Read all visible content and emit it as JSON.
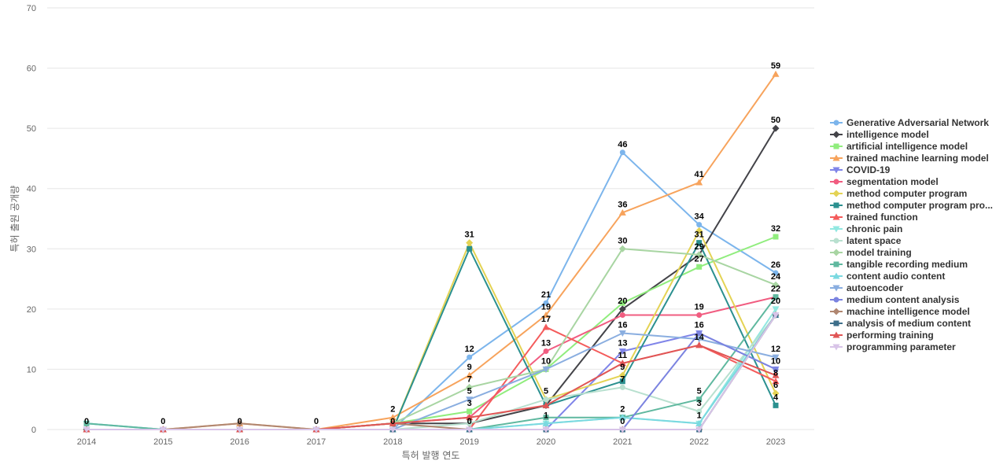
{
  "chart_data": {
    "type": "line",
    "title": "",
    "xlabel": "특허 발행 연도",
    "ylabel": "특허 출원 공개량",
    "x": [
      "2014",
      "2015",
      "2016",
      "2017",
      "2018",
      "2019",
      "2020",
      "2021",
      "2022",
      "2023"
    ],
    "ylim": [
      0,
      70
    ],
    "yticks": [
      0,
      10,
      20,
      30,
      40,
      50,
      60,
      70
    ],
    "grid": true,
    "legend_position": "right",
    "series": [
      {
        "name": "Generative Adversarial Network",
        "color": "#7cb5ec",
        "marker": "circle",
        "values": [
          1,
          0,
          0,
          0,
          0,
          12,
          21,
          46,
          34,
          26
        ]
      },
      {
        "name": "intelligence model",
        "color": "#434348",
        "marker": "diamond",
        "values": [
          0,
          0,
          0,
          0,
          1,
          1,
          4,
          20,
          29,
          50
        ]
      },
      {
        "name": "artificial intelligence model",
        "color": "#90ed7d",
        "marker": "square",
        "values": [
          0,
          0,
          0,
          0,
          1,
          3,
          10,
          21,
          27,
          32
        ]
      },
      {
        "name": "trained machine learning model",
        "color": "#f7a35c",
        "marker": "triangle",
        "values": [
          0,
          0,
          1,
          0,
          2,
          9,
          19,
          36,
          41,
          59
        ]
      },
      {
        "name": "COVID-19",
        "color": "#8085e9",
        "marker": "triangle-down",
        "values": [
          0,
          0,
          0,
          0,
          0,
          0,
          0,
          13,
          16,
          10
        ]
      },
      {
        "name": "segmentation model",
        "color": "#f15c80",
        "marker": "circle",
        "values": [
          0,
          0,
          0,
          0,
          1,
          2,
          13,
          19,
          19,
          22
        ]
      },
      {
        "name": "method computer program",
        "color": "#e4d354",
        "marker": "diamond",
        "values": [
          0,
          0,
          0,
          0,
          0,
          31,
          5,
          9,
          33,
          6
        ]
      },
      {
        "name": "method computer program pro...",
        "color": "#2b908f",
        "marker": "square",
        "values": [
          0,
          0,
          0,
          0,
          0,
          30,
          4,
          8,
          31,
          4
        ]
      },
      {
        "name": "trained function",
        "color": "#f45b5b",
        "marker": "triangle",
        "values": [
          0,
          0,
          0,
          0,
          0,
          0,
          17,
          11,
          14,
          8
        ]
      },
      {
        "name": "chronic pain",
        "color": "#91e8e1",
        "marker": "triangle-down",
        "values": [
          1,
          0,
          0,
          0,
          0,
          0,
          1,
          2,
          1,
          20
        ]
      },
      {
        "name": "latent space",
        "color": "#b8e0cf",
        "marker": "circle",
        "values": [
          0,
          0,
          0,
          0,
          0,
          1,
          5,
          7,
          3,
          19
        ]
      },
      {
        "name": "model training",
        "color": "#a8d5a2",
        "marker": "diamond",
        "values": [
          0,
          0,
          0,
          0,
          1,
          7,
          10,
          30,
          29,
          24
        ]
      },
      {
        "name": "tangible recording medium",
        "color": "#5fb89f",
        "marker": "square",
        "values": [
          1,
          0,
          0,
          0,
          0,
          0,
          2,
          2,
          5,
          22
        ]
      },
      {
        "name": "content audio content",
        "color": "#7ad9e0",
        "marker": "triangle",
        "values": [
          0,
          0,
          0,
          0,
          0,
          0,
          1,
          2,
          1,
          19
        ]
      },
      {
        "name": "autoencoder",
        "color": "#8aaee0",
        "marker": "triangle-down",
        "values": [
          0,
          0,
          0,
          0,
          0,
          5,
          10,
          16,
          15,
          12
        ]
      },
      {
        "name": "medium content analysis",
        "color": "#7b83e0",
        "marker": "circle",
        "values": [
          0,
          0,
          0,
          0,
          0,
          0,
          0,
          0,
          16,
          10
        ]
      },
      {
        "name": "machine intelligence model",
        "color": "#b08670",
        "marker": "diamond",
        "values": [
          0,
          0,
          1,
          0,
          1,
          0,
          0,
          0,
          0,
          19
        ]
      },
      {
        "name": "analysis of medium content",
        "color": "#3d6e8a",
        "marker": "square",
        "values": [
          0,
          0,
          0,
          0,
          0,
          0,
          0,
          0,
          0,
          19
        ]
      },
      {
        "name": "performing training",
        "color": "#e05555",
        "marker": "triangle",
        "values": [
          0,
          0,
          0,
          0,
          1,
          2,
          4,
          11,
          14,
          9
        ]
      },
      {
        "name": "programming parameter",
        "color": "#d8c4e8",
        "marker": "triangle-down",
        "values": [
          0,
          0,
          0,
          0,
          0,
          0,
          0,
          0,
          0,
          19
        ]
      }
    ],
    "data_labels": [
      {
        "xi": 0,
        "text": "0"
      },
      {
        "xi": 1,
        "text": "0"
      },
      {
        "xi": 2,
        "text": "0"
      },
      {
        "xi": 3,
        "text": "0"
      },
      {
        "xi": 4,
        "text": "2"
      },
      {
        "xi": 4,
        "text": "0"
      },
      {
        "xi": 5,
        "text": "31"
      },
      {
        "xi": 5,
        "text": "12"
      },
      {
        "xi": 5,
        "text": "9"
      },
      {
        "xi": 5,
        "text": "7"
      },
      {
        "xi": 5,
        "text": "5"
      },
      {
        "xi": 5,
        "text": "3"
      },
      {
        "xi": 5,
        "text": "0"
      },
      {
        "xi": 6,
        "text": "21"
      },
      {
        "xi": 6,
        "text": "19"
      },
      {
        "xi": 6,
        "text": "17"
      },
      {
        "xi": 6,
        "text": "13"
      },
      {
        "xi": 6,
        "text": "10"
      },
      {
        "xi": 6,
        "text": "5"
      },
      {
        "xi": 6,
        "text": "1"
      },
      {
        "xi": 7,
        "text": "46"
      },
      {
        "xi": 7,
        "text": "36"
      },
      {
        "xi": 7,
        "text": "30"
      },
      {
        "xi": 7,
        "text": "20"
      },
      {
        "xi": 7,
        "text": "16"
      },
      {
        "xi": 7,
        "text": "13"
      },
      {
        "xi": 7,
        "text": "11"
      },
      {
        "xi": 7,
        "text": "9"
      },
      {
        "xi": 7,
        "text": "7"
      },
      {
        "xi": 7,
        "text": "2"
      },
      {
        "xi": 7,
        "text": "0"
      },
      {
        "xi": 8,
        "text": "41"
      },
      {
        "xi": 8,
        "text": "34"
      },
      {
        "xi": 8,
        "text": "31"
      },
      {
        "xi": 8,
        "text": "29"
      },
      {
        "xi": 8,
        "text": "27"
      },
      {
        "xi": 8,
        "text": "19"
      },
      {
        "xi": 8,
        "text": "16"
      },
      {
        "xi": 8,
        "text": "14"
      },
      {
        "xi": 8,
        "text": "5"
      },
      {
        "xi": 8,
        "text": "3"
      },
      {
        "xi": 8,
        "text": "1"
      },
      {
        "xi": 9,
        "text": "59"
      },
      {
        "xi": 9,
        "text": "50"
      },
      {
        "xi": 9,
        "text": "32"
      },
      {
        "xi": 9,
        "text": "26"
      },
      {
        "xi": 9,
        "text": "24"
      },
      {
        "xi": 9,
        "text": "22"
      },
      {
        "xi": 9,
        "text": "20"
      },
      {
        "xi": 9,
        "text": "12"
      },
      {
        "xi": 9,
        "text": "10"
      },
      {
        "xi": 9,
        "text": "8"
      },
      {
        "xi": 9,
        "text": "6"
      },
      {
        "xi": 9,
        "text": "4"
      }
    ]
  }
}
